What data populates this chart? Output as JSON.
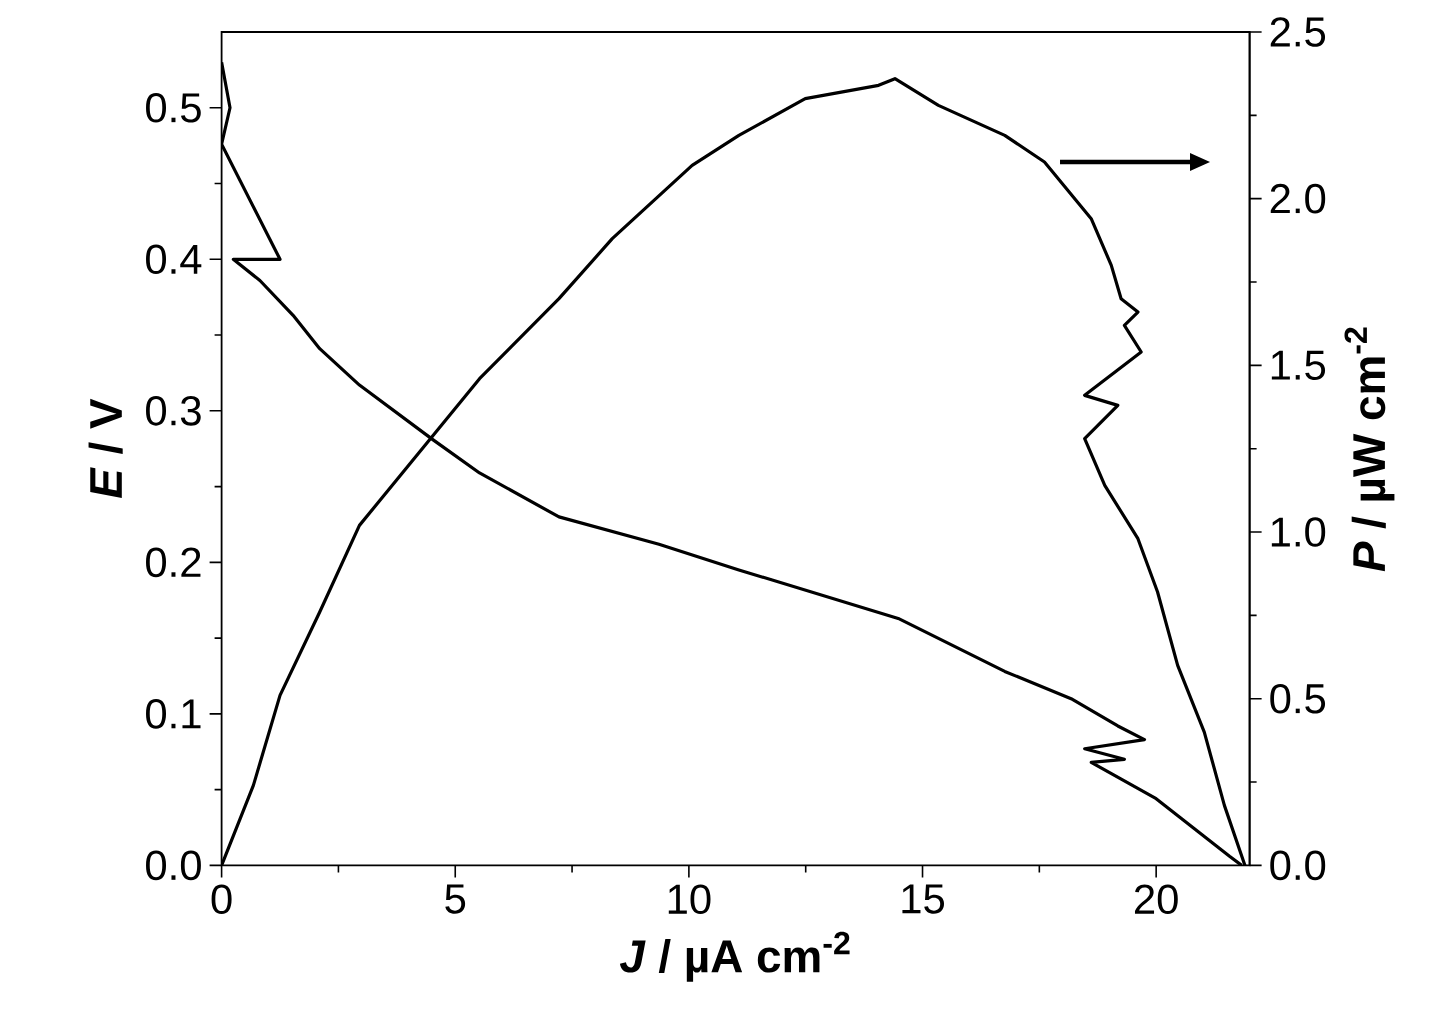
{
  "chart_data": {
    "type": "line",
    "xlabel": "*J* / µA cm$^{-2}$",
    "ylabel": "*E* / V",
    "y2label": "*P* / µW cm$^{-2}$",
    "xlim": [
      0,
      22
    ],
    "xticks": [
      0,
      5,
      10,
      15,
      20
    ],
    "ylim": [
      0,
      0.55
    ],
    "yticks": [
      {
        "value": 0,
        "label": "0.0"
      },
      0.1,
      0.2,
      0.3,
      0.4,
      0.5
    ],
    "y2lim": [
      0,
      2.5
    ],
    "y2ticks": [
      {
        "value": 0,
        "label": "0.0"
      },
      0.5,
      {
        "value": 1,
        "label": "1.0"
      },
      1.5,
      {
        "value": 2,
        "label": "2.0"
      },
      2.5
    ],
    "series": [
      {
        "color": "#000000",
        "x": [
          0,
          0.18,
          0,
          1.25,
          0.25,
          0.82,
          1.53,
          2.1,
          2.95,
          4.52,
          5.52,
          7.22,
          9.36,
          11.07,
          14.48,
          16.76,
          18.18,
          19.18,
          19.75,
          18.47,
          19.32,
          18.61,
          20.0,
          21.57,
          21.83
        ],
        "values": [
          0.53,
          0.5,
          0.476,
          0.4,
          0.4,
          0.386,
          0.363,
          0.341,
          0.317,
          0.281,
          0.259,
          0.23,
          0.212,
          0.195,
          0.163,
          0.128,
          0.11,
          0.092,
          0.083,
          0.077,
          0.07,
          0.068,
          0.044,
          0.006,
          0
        ]
      },
      {
        "color": "#000000",
        "axis": "y2",
        "x": [
          0,
          0.68,
          1.25,
          2.1,
          2.95,
          5.52,
          7.22,
          8.36,
          10.07,
          11.07,
          12.49,
          14.06,
          14.41,
          15.34,
          16.76,
          17.61,
          18.61,
          19.04,
          19.25,
          19.61,
          19.32,
          19.68,
          18.47,
          19.18,
          18.47,
          18.9,
          19.61,
          20.03,
          20.46,
          21.03,
          21.46,
          21.9
        ],
        "values": [
          0,
          0.24,
          0.51,
          0.76,
          1.02,
          1.46,
          1.7,
          1.88,
          2.1,
          2.19,
          2.3,
          2.34,
          2.36,
          2.28,
          2.19,
          2.11,
          1.94,
          1.8,
          1.7,
          1.66,
          1.62,
          1.54,
          1.41,
          1.38,
          1.28,
          1.14,
          0.98,
          0.82,
          0.6,
          0.4,
          0.18,
          0
        ]
      }
    ]
  }
}
